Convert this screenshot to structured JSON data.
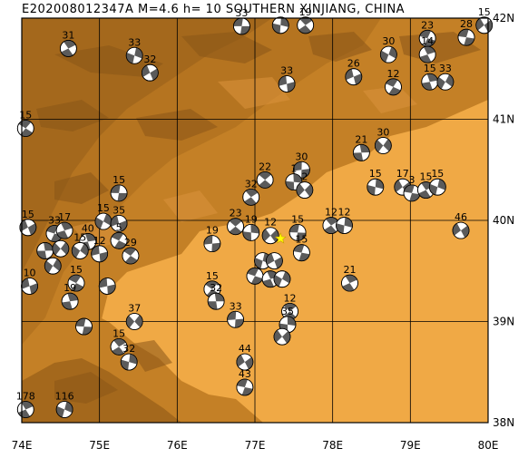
{
  "title": "E202008012347A  M=4.6  h= 10 SOUTHERN XINJIANG, CHINA",
  "epicenter_color": "#ffff00",
  "colors": {
    "lowland": "#f0a945",
    "highland": "#b57420",
    "ridge": "#8a5618",
    "beachball_dark": "#5b5b5b",
    "grid": "#000000"
  },
  "lon_labels": [
    "74E",
    "75E",
    "76E",
    "77E",
    "78E",
    "79E",
    "80E"
  ],
  "lat_labels": [
    "38N",
    "39N",
    "40N",
    "41N",
    "42N"
  ],
  "events": [
    {
      "label": "33",
      "lon": 76.83,
      "lat": 41.92
    },
    {
      "label": "19",
      "lon": 77.65,
      "lat": 41.93
    },
    {
      "label": "",
      "lon": 77.33,
      "lat": 41.93
    },
    {
      "label": "15",
      "lon": 79.95,
      "lat": 41.93
    },
    {
      "label": "28",
      "lon": 79.72,
      "lat": 41.81
    },
    {
      "label": "31",
      "lon": 74.6,
      "lat": 41.7
    },
    {
      "label": "33",
      "lon": 75.45,
      "lat": 41.63
    },
    {
      "label": "32",
      "lon": 75.65,
      "lat": 41.46
    },
    {
      "label": "23",
      "lon": 79.22,
      "lat": 41.8
    },
    {
      "label": "14",
      "lon": 79.22,
      "lat": 41.64
    },
    {
      "label": "30",
      "lon": 78.72,
      "lat": 41.64
    },
    {
      "label": "26",
      "lon": 78.27,
      "lat": 41.42
    },
    {
      "label": "12",
      "lon": 78.78,
      "lat": 41.32
    },
    {
      "label": "15",
      "lon": 79.25,
      "lat": 41.37
    },
    {
      "label": "33",
      "lon": 79.45,
      "lat": 41.37
    },
    {
      "label": "33",
      "lon": 77.41,
      "lat": 41.35
    },
    {
      "label": "15",
      "lon": 74.05,
      "lat": 40.91
    },
    {
      "label": "21",
      "lon": 78.37,
      "lat": 40.67
    },
    {
      "label": "30",
      "lon": 78.65,
      "lat": 40.74
    },
    {
      "label": "30",
      "lon": 77.6,
      "lat": 40.5
    },
    {
      "label": "22",
      "lon": 77.13,
      "lat": 40.4
    },
    {
      "label": "1",
      "lon": 77.5,
      "lat": 40.38
    },
    {
      "label": "2",
      "lon": 77.64,
      "lat": 40.3
    },
    {
      "label": "15",
      "lon": 75.25,
      "lat": 40.27
    },
    {
      "label": "32",
      "lon": 76.95,
      "lat": 40.23
    },
    {
      "label": "15",
      "lon": 78.55,
      "lat": 40.33
    },
    {
      "label": "17",
      "lon": 78.9,
      "lat": 40.33
    },
    {
      "label": "3",
      "lon": 79.02,
      "lat": 40.27
    },
    {
      "label": "15",
      "lon": 79.2,
      "lat": 40.3
    },
    {
      "label": "15",
      "lon": 79.35,
      "lat": 40.33
    },
    {
      "label": "15",
      "lon": 74.08,
      "lat": 39.93
    },
    {
      "label": "33",
      "lon": 74.42,
      "lat": 39.87
    },
    {
      "label": "17",
      "lon": 74.55,
      "lat": 39.9
    },
    {
      "label": "15",
      "lon": 75.05,
      "lat": 39.99
    },
    {
      "label": "35",
      "lon": 75.25,
      "lat": 39.97
    },
    {
      "label": "5",
      "lon": 75.25,
      "lat": 39.8
    },
    {
      "label": "40",
      "lon": 74.85,
      "lat": 39.79
    },
    {
      "label": "15",
      "lon": 74.75,
      "lat": 39.7
    },
    {
      "label": "12",
      "lon": 75.0,
      "lat": 39.67
    },
    {
      "label": "29",
      "lon": 75.4,
      "lat": 39.65
    },
    {
      "label": "",
      "lon": 74.3,
      "lat": 39.7
    },
    {
      "label": "",
      "lon": 74.5,
      "lat": 39.72
    },
    {
      "label": "19",
      "lon": 76.45,
      "lat": 39.77
    },
    {
      "label": "23",
      "lon": 76.75,
      "lat": 39.94
    },
    {
      "label": "19",
      "lon": 76.95,
      "lat": 39.88
    },
    {
      "label": "12",
      "lon": 77.2,
      "lat": 39.85
    },
    {
      "label": "15",
      "lon": 77.55,
      "lat": 39.88
    },
    {
      "label": "12",
      "lon": 77.98,
      "lat": 39.95
    },
    {
      "label": "12",
      "lon": 78.15,
      "lat": 39.95
    },
    {
      "label": "46",
      "lon": 79.65,
      "lat": 39.9
    },
    {
      "label": "15",
      "lon": 77.6,
      "lat": 39.68
    },
    {
      "label": "21",
      "lon": 78.22,
      "lat": 39.38
    },
    {
      "label": "",
      "lon": 77.1,
      "lat": 39.6
    },
    {
      "label": "",
      "lon": 77.25,
      "lat": 39.6
    },
    {
      "label": "",
      "lon": 77.0,
      "lat": 39.45
    },
    {
      "label": "",
      "lon": 77.2,
      "lat": 39.42
    },
    {
      "label": "",
      "lon": 77.35,
      "lat": 39.42
    },
    {
      "label": "10",
      "lon": 74.1,
      "lat": 39.35
    },
    {
      "label": "15",
      "lon": 74.7,
      "lat": 39.38
    },
    {
      "label": "19",
      "lon": 74.62,
      "lat": 39.2
    },
    {
      "label": "",
      "lon": 74.4,
      "lat": 39.55
    },
    {
      "label": "",
      "lon": 75.1,
      "lat": 39.35
    },
    {
      "label": "15",
      "lon": 76.45,
      "lat": 39.32
    },
    {
      "label": "32",
      "lon": 76.5,
      "lat": 39.2
    },
    {
      "label": "37",
      "lon": 75.45,
      "lat": 39.0
    },
    {
      "label": "33",
      "lon": 76.75,
      "lat": 39.02
    },
    {
      "label": "12",
      "lon": 77.45,
      "lat": 39.1
    },
    {
      "label": "35",
      "lon": 77.42,
      "lat": 38.97
    },
    {
      "label": "",
      "lon": 77.35,
      "lat": 38.85
    },
    {
      "label": "",
      "lon": 74.8,
      "lat": 38.95
    },
    {
      "label": "15",
      "lon": 75.25,
      "lat": 38.75
    },
    {
      "label": "32",
      "lon": 75.38,
      "lat": 38.6
    },
    {
      "label": "44",
      "lon": 76.87,
      "lat": 38.6
    },
    {
      "label": "43",
      "lon": 76.87,
      "lat": 38.35
    },
    {
      "label": "178",
      "lon": 74.05,
      "lat": 38.13
    },
    {
      "label": "116",
      "lon": 74.55,
      "lat": 38.13
    }
  ]
}
